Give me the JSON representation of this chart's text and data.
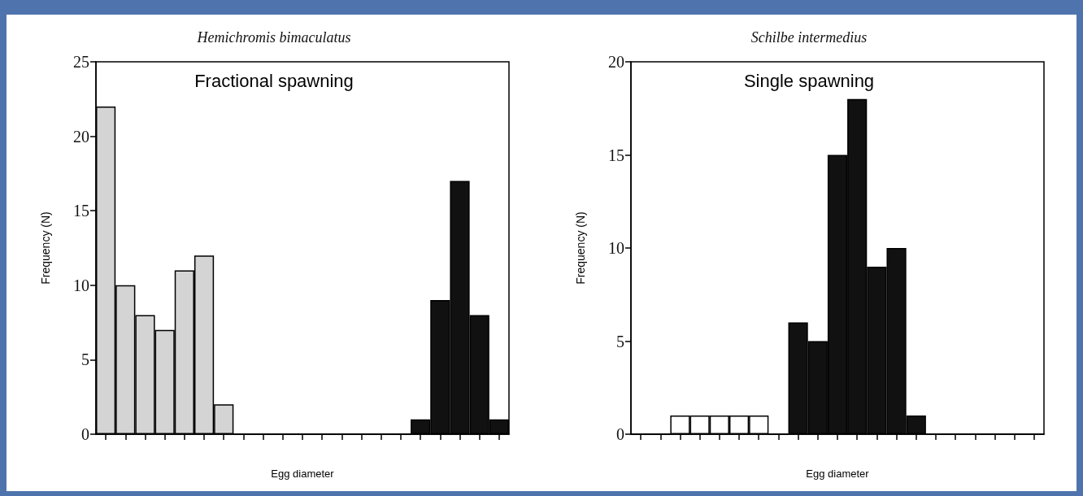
{
  "chart_data": [
    {
      "type": "bar",
      "title": "Hemichromis bimaculatus",
      "xlabel": "Egg diameter",
      "ylabel": "Frequency (N)",
      "annotations": [
        "Fractional spawning"
      ],
      "categories": [
        null,
        null,
        null,
        null,
        null,
        null,
        null,
        null,
        null,
        null,
        null,
        null,
        null,
        null,
        null,
        null,
        null,
        null,
        null,
        null,
        null
      ],
      "values": [
        22,
        10,
        8,
        7,
        11,
        12,
        2,
        0,
        0,
        0,
        0,
        0,
        0,
        0,
        0,
        0,
        1,
        9,
        17,
        8,
        1
      ],
      "colors": [
        "#d4d4d4",
        "#d4d4d4",
        "#d4d4d4",
        "#d4d4d4",
        "#d4d4d4",
        "#d4d4d4",
        "#d4d4d4",
        "#000000",
        "#000000",
        "#000000",
        "#000000",
        "#000000",
        "#000000",
        "#000000",
        "#000000",
        "#000000",
        "#111111",
        "#111111",
        "#111111",
        "#111111",
        "#111111"
      ],
      "ylim": [
        0,
        25
      ],
      "yticks": [
        0,
        5,
        10,
        15,
        20,
        25
      ],
      "grid": false,
      "tick_labels": "y"
    },
    {
      "type": "bar",
      "title": "Schilbe intermedius",
      "xlabel": "Egg diameter",
      "ylabel": "Frequency (N)",
      "annotations": [
        "Single spawning"
      ],
      "categories": [
        null,
        null,
        null,
        null,
        null,
        null,
        null,
        null,
        null,
        null,
        null,
        null,
        null,
        null,
        null,
        null,
        null,
        null,
        null,
        null,
        null
      ],
      "values": [
        0,
        0,
        1,
        1,
        1,
        1,
        1,
        0,
        6,
        5,
        15,
        18,
        9,
        10,
        1,
        0,
        0,
        0,
        0,
        0,
        0
      ],
      "colors": [
        "#000000",
        "#000000",
        "#ffffff",
        "#ffffff",
        "#ffffff",
        "#ffffff",
        "#ffffff",
        "#000000",
        "#111111",
        "#111111",
        "#111111",
        "#111111",
        "#111111",
        "#111111",
        "#111111",
        "#000000",
        "#000000",
        "#000000",
        "#000000",
        "#000000",
        "#000000"
      ],
      "ylim": [
        0,
        20
      ],
      "yticks": [
        0,
        5,
        10,
        15,
        20
      ],
      "grid": false,
      "tick_labels": "y"
    }
  ]
}
